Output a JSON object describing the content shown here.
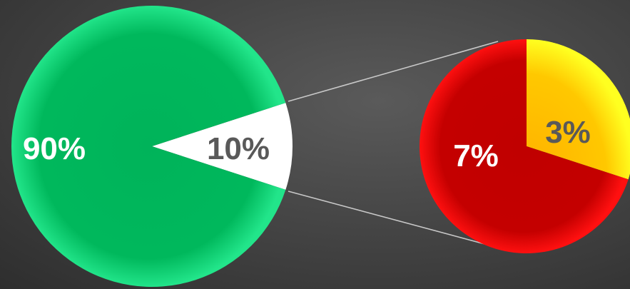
{
  "chart_data": {
    "type": "pie",
    "title": "",
    "charts": [
      {
        "kind": "main-pie",
        "slices": [
          {
            "label": "90%",
            "value": 90,
            "color": "#00b050"
          },
          {
            "label": "10%",
            "value": 10,
            "color": "#ffffff",
            "exploded_to": "detail-pie"
          }
        ]
      },
      {
        "kind": "detail-pie",
        "slices": [
          {
            "label": "7%",
            "value": 7,
            "color": "#c00000"
          },
          {
            "label": "3%",
            "value": 3,
            "color": "#ffc000"
          }
        ]
      }
    ]
  },
  "labels": {
    "main_large": "90%",
    "main_small": "10%",
    "detail_large": "7%",
    "detail_small": "3%"
  }
}
